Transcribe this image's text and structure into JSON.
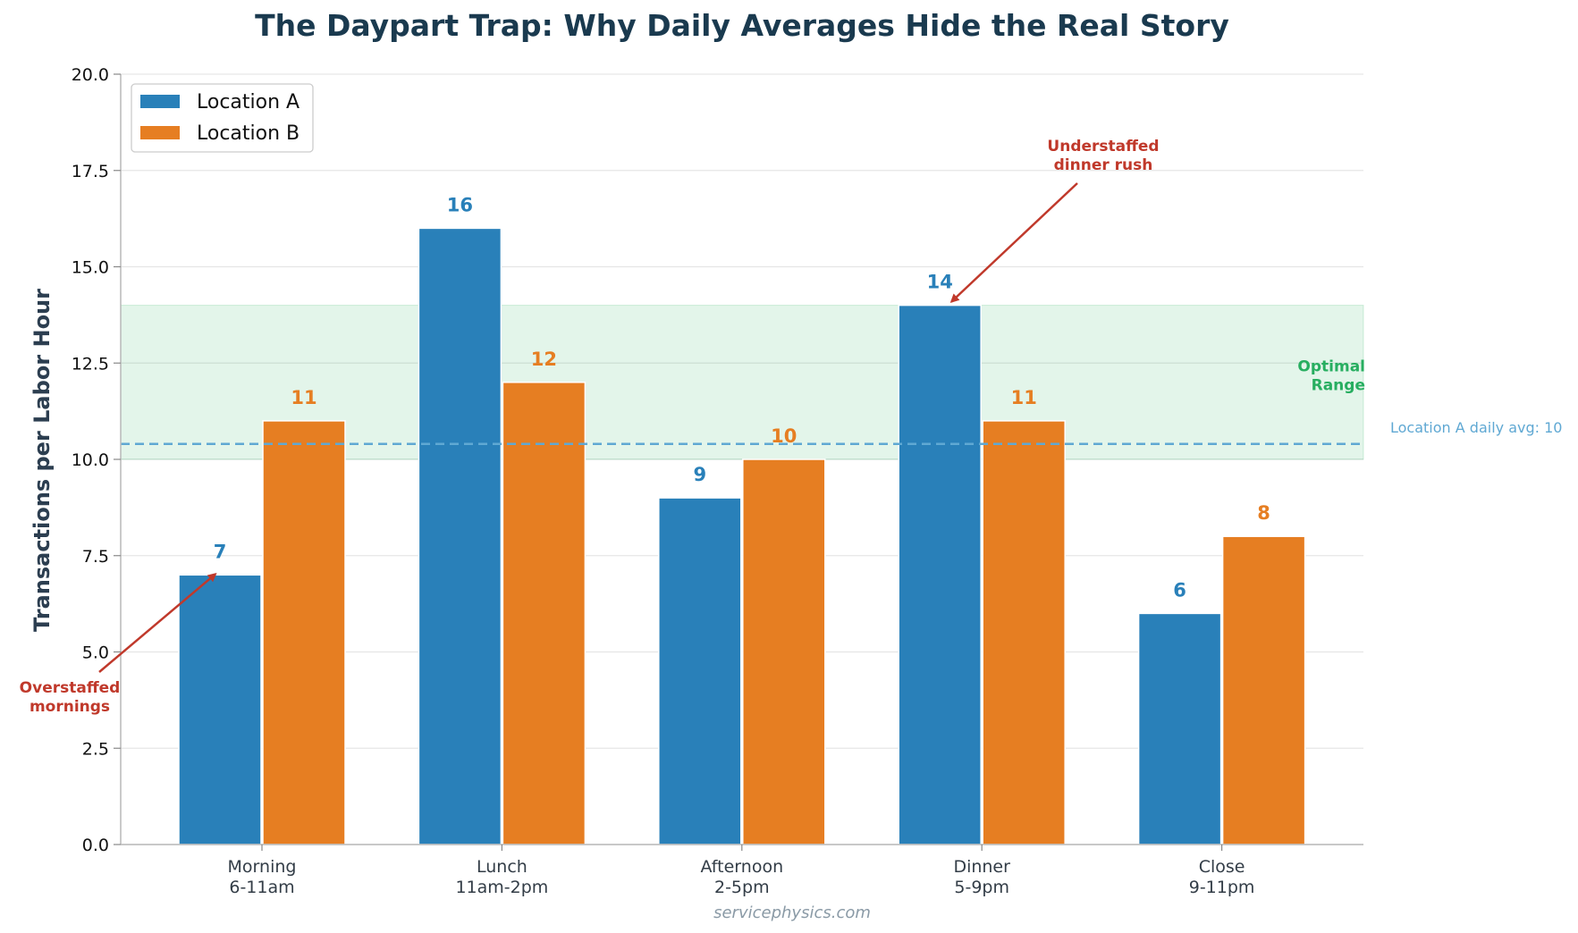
{
  "chart_data": {
    "type": "bar",
    "title": "The Daypart Trap: Why Daily Averages Hide the Real Story",
    "xlabel": "",
    "ylabel": "Transactions per Labor Hour",
    "ylim": [
      0,
      20
    ],
    "yticks": [
      "0.0",
      "2.5",
      "5.0",
      "7.5",
      "10.0",
      "12.5",
      "15.0",
      "17.5",
      "20.0"
    ],
    "categories": [
      {
        "name": "Morning",
        "hours": "6-11am"
      },
      {
        "name": "Lunch",
        "hours": "11am-2pm"
      },
      {
        "name": "Afternoon",
        "hours": "2-5pm"
      },
      {
        "name": "Dinner",
        "hours": "5-9pm"
      },
      {
        "name": "Close",
        "hours": "9-11pm"
      }
    ],
    "series": [
      {
        "name": "Location A",
        "color": "#2980b9",
        "values": [
          7,
          16,
          9,
          14,
          6
        ],
        "labels": [
          "7",
          "16",
          "9",
          "14",
          "6"
        ]
      },
      {
        "name": "Location B",
        "color": "#e67e22",
        "values": [
          11,
          12,
          10,
          11,
          8
        ],
        "labels": [
          "11",
          "12",
          "10",
          "11",
          "8"
        ]
      }
    ],
    "optimal_range": {
      "low": 10,
      "high": 14,
      "label_lines": [
        "Optimal",
        "Range"
      ],
      "color": "#27ae60"
    },
    "average_line": {
      "value": 10.4,
      "label": "Location A daily avg: 10",
      "color": "#5fa8d3"
    },
    "annotations": [
      {
        "lines": [
          "Overstaffed",
          "mornings"
        ],
        "target_category": 0,
        "target_series": 0,
        "target_value": 7
      },
      {
        "lines": [
          "Understaffed",
          "dinner rush"
        ],
        "target_category": 3,
        "target_series": 0,
        "target_value": 14
      }
    ],
    "legend": {
      "placement": "upper-left"
    },
    "grid": "horizontal",
    "source": "servicephysics.com"
  }
}
